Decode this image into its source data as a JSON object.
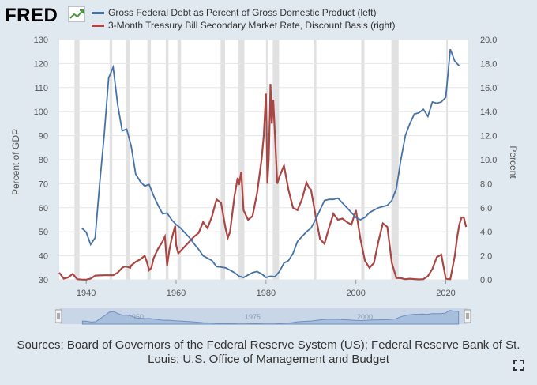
{
  "header": {
    "logo_text": "FRED",
    "legend": [
      {
        "label": "Gross Federal Debt as Percent of Gross Domestic Product (left)",
        "color": "#4572a7"
      },
      {
        "label": "3-Month Treasury Bill Secondary Market Rate, Discount Basis (right)",
        "color": "#aa4643"
      }
    ]
  },
  "navigator": {
    "labels": [
      "1950",
      "1975",
      "2000"
    ]
  },
  "sources_text": "Sources: Board of Governors of the Federal Reserve System (US); Federal Reserve Bank of St. Louis; U.S. Office of Management and Budget",
  "colors": {
    "background": "#e1e9f0",
    "plot_background": "#ffffff",
    "recession_band": "#e1e1e1",
    "debt_line": "#4572a7",
    "tbill_line": "#aa4643"
  },
  "chart_data": {
    "type": "line",
    "title": "",
    "x_ticks": [
      "1940",
      "1960",
      "1980",
      "2000",
      "2020"
    ],
    "xlim": [
      1934,
      2025
    ],
    "y_left": {
      "label": "Percent of GDP",
      "ticks": [
        "30",
        "40",
        "50",
        "60",
        "70",
        "80",
        "90",
        "100",
        "110",
        "120",
        "130"
      ],
      "range": [
        30,
        130
      ]
    },
    "y_right": {
      "label": "Percent",
      "ticks": [
        "0.0",
        "2.0",
        "4.0",
        "6.0",
        "8.0",
        "10.0",
        "12.0",
        "14.0",
        "16.0",
        "18.0",
        "20.0"
      ],
      "range": [
        0,
        20
      ]
    },
    "recessions": [
      [
        1937.4,
        1938.5
      ],
      [
        1945.2,
        1945.8
      ],
      [
        1948.9,
        1949.8
      ],
      [
        1953.6,
        1954.4
      ],
      [
        1957.7,
        1958.3
      ],
      [
        1960.3,
        1961.1
      ],
      [
        1969.9,
        1970.9
      ],
      [
        1973.9,
        1975.2
      ],
      [
        1980.0,
        1980.5
      ],
      [
        1981.5,
        1982.9
      ],
      [
        1990.6,
        1991.2
      ],
      [
        2001.2,
        2001.9
      ],
      [
        2007.9,
        2009.5
      ],
      [
        2020.1,
        2020.4
      ]
    ],
    "series": [
      {
        "name": "Gross Federal Debt as Percent of Gross Domestic Product (left)",
        "axis": "left",
        "x": [
          1939,
          1940,
          1941,
          1942,
          1943,
          1944,
          1945,
          1946,
          1947,
          1948,
          1949,
          1950,
          1951,
          1952,
          1953,
          1954,
          1955,
          1956,
          1957,
          1958,
          1959,
          1960,
          1961,
          1962,
          1963,
          1964,
          1965,
          1966,
          1967,
          1968,
          1969,
          1970,
          1971,
          1972,
          1973,
          1974,
          1975,
          1976,
          1977,
          1978,
          1979,
          1980,
          1981,
          1982,
          1983,
          1984,
          1985,
          1986,
          1987,
          1988,
          1989,
          1990,
          1991,
          1992,
          1993,
          1994,
          1995,
          1996,
          1997,
          1998,
          1999,
          2000,
          2001,
          2002,
          2003,
          2004,
          2005,
          2006,
          2007,
          2008,
          2009,
          2010,
          2011,
          2012,
          2013,
          2014,
          2015,
          2016,
          2017,
          2018,
          2019,
          2020,
          2021,
          2022,
          2023
        ],
        "values": [
          51.6,
          49.8,
          44.7,
          47.5,
          70.0,
          90.0,
          114.0,
          118.5,
          103.0,
          92.0,
          92.7,
          85.7,
          74.0,
          71.0,
          69.0,
          69.7,
          65.0,
          61.0,
          57.5,
          57.8,
          55.0,
          53.0,
          51.5,
          49.5,
          47.5,
          45.0,
          42.7,
          40.0,
          39.0,
          38.0,
          35.5,
          35.3,
          35.0,
          34.0,
          33.0,
          31.5,
          31.0,
          32.0,
          33.0,
          33.5,
          32.5,
          31.0,
          31.5,
          31.3,
          33.5,
          37.0,
          38.0,
          41.0,
          46.0,
          48.0,
          50.0,
          51.5,
          55.0,
          59.0,
          63.0,
          63.5,
          63.5,
          64.0,
          62.0,
          60.0,
          58.0,
          56.0,
          55.0,
          56.0,
          58.0,
          59.0,
          60.0,
          60.5,
          61.0,
          63.0,
          68.0,
          80.0,
          90.0,
          95.0,
          99.0,
          99.5,
          101.0,
          98.0,
          104.0,
          103.5,
          104.0,
          106.0,
          126.0,
          121.0,
          119.0
        ]
      },
      {
        "name": "3-Month Treasury Bill Secondary Market Rate, Discount Basis (right)",
        "axis": "right",
        "x": [
          1934,
          1935,
          1936,
          1937,
          1938,
          1939,
          1940,
          1941,
          1942,
          1943,
          1944,
          1945,
          1946,
          1947,
          1948,
          1948.5,
          1949,
          1949.8,
          1950,
          1951,
          1952,
          1953,
          1953.5,
          1954,
          1954.5,
          1955,
          1956,
          1957,
          1957.5,
          1958,
          1958.5,
          1959,
          1959.8,
          1960,
          1960.5,
          1961,
          1962,
          1963,
          1964,
          1965,
          1966,
          1967,
          1968,
          1969,
          1970,
          1971,
          1971.5,
          1972,
          1973,
          1973.7,
          1974,
          1974.5,
          1975,
          1976,
          1977,
          1978,
          1979,
          1979.5,
          1980,
          1980.3,
          1980.6,
          1980.9,
          1981,
          1981.3,
          1981.6,
          1982,
          1982.5,
          1983,
          1984,
          1985,
          1986,
          1987,
          1988,
          1989,
          1989.5,
          1990,
          1991,
          1992,
          1993,
          1994,
          1995,
          1996,
          1997,
          1998,
          1999,
          2000,
          2001,
          2002,
          2003,
          2004,
          2005,
          2006,
          2007,
          2008,
          2009,
          2010,
          2011,
          2012,
          2013,
          2014,
          2015,
          2016,
          2017,
          2018,
          2019,
          2020,
          2020.5,
          2021,
          2022,
          2022.5,
          2023,
          2023.5,
          2024,
          2024.5
        ],
        "values": [
          0.6,
          0.1,
          0.2,
          0.5,
          0.05,
          0.02,
          0.01,
          0.1,
          0.35,
          0.37,
          0.38,
          0.38,
          0.38,
          0.6,
          1.0,
          1.1,
          1.1,
          1.0,
          1.2,
          1.5,
          1.7,
          2.0,
          1.5,
          0.8,
          1.0,
          1.8,
          2.6,
          3.2,
          3.6,
          1.2,
          2.5,
          3.4,
          4.5,
          2.9,
          2.2,
          2.4,
          2.8,
          3.2,
          3.6,
          3.9,
          4.8,
          4.3,
          5.3,
          6.7,
          6.4,
          4.3,
          3.5,
          4.0,
          7.0,
          8.5,
          7.9,
          9.0,
          5.8,
          5.0,
          5.3,
          7.2,
          10.0,
          12.0,
          15.5,
          8.0,
          10.0,
          14.5,
          16.3,
          13.0,
          15.0,
          12.0,
          8.0,
          8.6,
          9.5,
          7.5,
          6.0,
          5.8,
          6.7,
          8.1,
          7.7,
          7.5,
          5.4,
          3.4,
          3.0,
          4.3,
          5.5,
          5.0,
          5.1,
          4.8,
          4.6,
          5.8,
          3.4,
          1.6,
          1.0,
          1.4,
          3.2,
          4.7,
          4.4,
          1.4,
          0.15,
          0.14,
          0.05,
          0.09,
          0.06,
          0.03,
          0.05,
          0.3,
          0.9,
          1.9,
          2.1,
          0.1,
          0.05,
          0.05,
          2.0,
          3.5,
          4.6,
          5.2,
          5.2,
          4.4
        ]
      }
    ]
  }
}
